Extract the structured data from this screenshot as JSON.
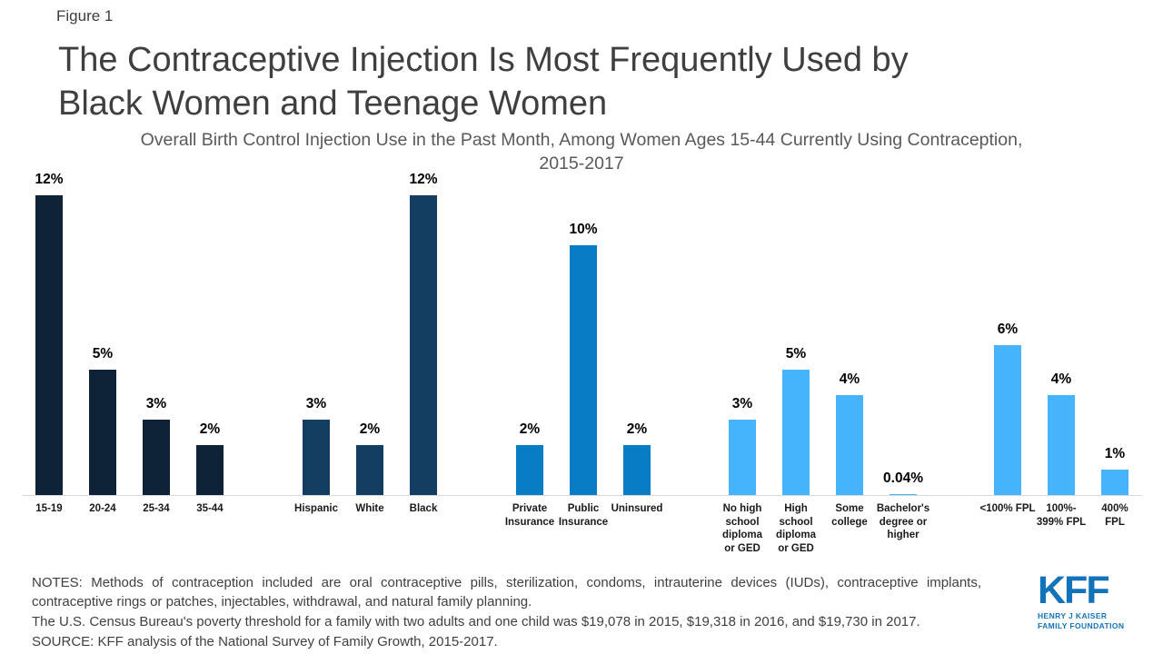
{
  "figure_label": "Figure 1",
  "title_line1": "The Contraceptive Injection Is Most Frequently Used by",
  "title_line2": "Black Women and Teenage Women",
  "subtitle": "Overall Birth Control Injection Use in the Past Month, Among Women Ages 15-44 Currently Using Contraception, 2015-2017",
  "chart_data": {
    "type": "bar",
    "title": "Overall Birth Control Injection Use in the Past Month, Among Women Ages 15-44 Currently Using Contraception, 2015-2017",
    "xlabel": "",
    "ylabel": "",
    "value_unit": "%",
    "ylim": [
      0,
      13
    ],
    "grid": false,
    "y_axis_visible": false,
    "legend": "none",
    "groups": [
      {
        "name": "age",
        "color": "#0e2337",
        "bars": [
          {
            "label": "15-19",
            "value": 12,
            "display": "12%"
          },
          {
            "label": "20-24",
            "value": 5,
            "display": "5%"
          },
          {
            "label": "25-34",
            "value": 3,
            "display": "3%"
          },
          {
            "label": "35-44",
            "value": 2,
            "display": "2%"
          }
        ]
      },
      {
        "name": "race-ethnicity",
        "color": "#133e62",
        "bars": [
          {
            "label": "Hispanic",
            "value": 3,
            "display": "3%"
          },
          {
            "label": "White",
            "value": 2,
            "display": "2%"
          },
          {
            "label": "Black",
            "value": 12,
            "display": "12%"
          }
        ]
      },
      {
        "name": "insurance-status",
        "color": "#087cc4",
        "bars": [
          {
            "label": "Private\nInsurance",
            "value": 2,
            "display": "2%"
          },
          {
            "label": "Public\nInsurance",
            "value": 10,
            "display": "10%"
          },
          {
            "label": "Uninsured",
            "value": 2,
            "display": "2%"
          }
        ]
      },
      {
        "name": "education",
        "color": "#45b4fc",
        "bars": [
          {
            "label": "No high\nschool\ndiploma\nor GED",
            "value": 3,
            "display": "3%"
          },
          {
            "label": "High\nschool\ndiploma\nor GED",
            "value": 5,
            "display": "5%"
          },
          {
            "label": "Some\ncollege",
            "value": 4,
            "display": "4%"
          },
          {
            "label": "Bachelor's\ndegree or\nhigher",
            "value": 0.04,
            "display": "0.04%"
          }
        ]
      },
      {
        "name": "federal-poverty-level",
        "color": "#45b4fc",
        "bars": [
          {
            "label": "<100% FPL",
            "value": 6,
            "display": "6%"
          },
          {
            "label": "100%-\n399% FPL",
            "value": 4,
            "display": "4%"
          },
          {
            "label": "400% FPL",
            "value": 1,
            "display": "1%"
          }
        ]
      }
    ]
  },
  "notes": {
    "line1": "NOTES: Methods of contraception included are oral contraceptive pills, sterilization, condoms, intrauterine devices (IUDs), contraceptive implants, contraceptive rings or patches, injectables, withdrawal, and natural family planning.",
    "line2": "The U.S. Census Bureau's poverty threshold for a family with two adults and one child was $19,078 in 2015, $19,318 in 2016, and $19,730 in 2017.",
    "line3": "SOURCE: KFF analysis of the National Survey  of Family Growth, 2015-2017."
  },
  "logo": {
    "text": "KFF",
    "sub_line1": "HENRY J KAISER",
    "sub_line2": "FAMILY FOUNDATION",
    "color": "#1373b9"
  },
  "colors": {
    "background": "#ffffff",
    "title_text": "#3f3f3f",
    "subtitle_text": "#595959",
    "axis_line": "#d9d9d9",
    "value_label": "#000000",
    "category_label": "#1a1a1a",
    "notes_text": "#404040"
  }
}
